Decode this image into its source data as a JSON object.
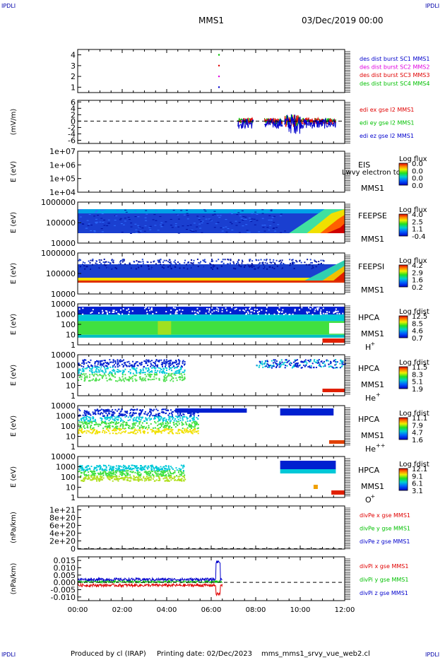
{
  "header": {
    "corner_tl": "IPDLI",
    "corner_tr": "IPDLI",
    "corner_bl": "IPDLI",
    "corner_br": "IPDLI",
    "mission": "MMS1",
    "datetime": "03/Dec/2019 00:00"
  },
  "footer": {
    "produced_by": "Produced by cl (IRAP)",
    "printing_date": "Printing date: 02/Dec/2023",
    "script_name": "mms_mms1_srvy_vue_web2.cl"
  },
  "colors": {
    "red": "#e00000",
    "magenta": "#e000e0",
    "green": "#00c000",
    "blue": "#0000cc"
  },
  "chart_data": [
    {
      "type": "scatter",
      "ylim": [
        0.5,
        4.5
      ],
      "ytick_labels": [
        "1",
        "2",
        "3",
        "4"
      ],
      "yticks": [
        1,
        2,
        3,
        4
      ],
      "legend": [
        {
          "text": "des dist burst SC1 MMS1",
          "color": "#0000cc"
        },
        {
          "text": "des dist burst SC2 MMS2",
          "color": "#e000e0"
        },
        {
          "text": "des dist burst SC3 MMS3",
          "color": "#e00000"
        },
        {
          "text": "des dist burst SC4 MMS4",
          "color": "#00c000"
        }
      ],
      "points": [
        {
          "x": 6.35,
          "y": 4,
          "c": "#00c000"
        },
        {
          "x": 6.35,
          "y": 3,
          "c": "#e00000"
        },
        {
          "x": 6.35,
          "y": 2,
          "c": "#e000e0"
        },
        {
          "x": 6.35,
          "y": 1,
          "c": "#0000cc"
        }
      ]
    },
    {
      "type": "line",
      "ylabel": "(mV/m)",
      "ylim": [
        -7,
        6.5
      ],
      "yticks": [
        6,
        4,
        2,
        0,
        -2,
        -4,
        -6
      ],
      "ytick_labels": [
        "6",
        "4",
        "2",
        "0",
        "-2",
        "-4",
        "-6"
      ],
      "zero_line": true,
      "legend": [
        {
          "text": "edi ex gse l2 MMS1",
          "color": "#e00000"
        },
        {
          "text": "edi ey gse l2 MMS1",
          "color": "#00c000"
        },
        {
          "text": "edi ez gse l2 MMS1",
          "color": "#0000cc"
        }
      ]
    },
    {
      "type": "heatmap",
      "ylabel": "E (eV)",
      "ytick_labels": [
        "1e+07",
        "1e+06",
        "1e+05",
        "1e+04"
      ],
      "instrument": "EIS",
      "overlay": "Lwvy electron to",
      "spacecraft": "MMS1",
      "cbar_title": "Log flux",
      "cbar_values": [
        "0.0",
        "0.0",
        "0.0",
        "0.0"
      ],
      "fill": "none"
    },
    {
      "type": "heatmap",
      "ylabel": "E (eV)",
      "ytick_labels": [
        "1000000",
        "100000",
        "10000"
      ],
      "instrument": "FEEPSE",
      "spacecraft": "MMS1",
      "cbar_title": "Log flux",
      "cbar_values": [
        "4.0",
        "2.5",
        "1.1",
        "-0.4"
      ],
      "fill": "feepse"
    },
    {
      "type": "heatmap",
      "ylabel": "E (eV)",
      "ytick_labels": [
        "1000000",
        "100000",
        "10000"
      ],
      "instrument": "FEEPSI",
      "spacecraft": "MMS1",
      "cbar_title": "Log flux",
      "cbar_values": [
        "4.2",
        "2.9",
        "1.6",
        "0.2"
      ],
      "fill": "feepsi"
    },
    {
      "type": "heatmap",
      "ylabel": "E (eV)",
      "ytick_labels": [
        "10000",
        "1000",
        "100",
        "10",
        "1"
      ],
      "instrument": "HPCA",
      "spacecraft": "MMS1",
      "species": "H",
      "species_sup": "+",
      "cbar_title": "Log fdist",
      "cbar_values": [
        "12.5",
        "8.5",
        "4.6",
        "0.7"
      ],
      "fill": "hplus"
    },
    {
      "type": "heatmap",
      "ylabel": "E (eV)",
      "ytick_labels": [
        "10000",
        "1000",
        "100",
        "10",
        "1"
      ],
      "instrument": "HPCA",
      "spacecraft": "MMS1",
      "species": "He",
      "species_sup": "+",
      "cbar_title": "Log fdist",
      "cbar_values": [
        "11.5",
        "8.3",
        "5.1",
        "1.9"
      ],
      "fill": "heplus"
    },
    {
      "type": "heatmap",
      "ylabel": "E (eV)",
      "ytick_labels": [
        "10000",
        "1000",
        "100",
        "10",
        "1"
      ],
      "instrument": "HPCA",
      "spacecraft": "MMS1",
      "species": "He",
      "species_sup": "++",
      "cbar_title": "Log fdist",
      "cbar_values": [
        "11.1",
        "7.9",
        "4.7",
        "1.6"
      ],
      "fill": "heplusplus"
    },
    {
      "type": "heatmap",
      "ylabel": "E (eV)",
      "ytick_labels": [
        "10000",
        "1000",
        "100",
        "10",
        "1"
      ],
      "instrument": "HPCA",
      "spacecraft": "MMS1",
      "species": "O",
      "species_sup": "+",
      "cbar_title": "Log fdist",
      "cbar_values": [
        "12.1",
        "9.1",
        "6.1",
        "3.1"
      ],
      "fill": "oplus"
    },
    {
      "type": "line",
      "ylabel": "(nPa/km)",
      "ylim": [
        -1e+19,
        1.1e+21
      ],
      "yticks": [
        1e+21,
        8e+20,
        6e+20,
        4e+20,
        2e+20,
        0
      ],
      "ytick_labels": [
        "1e+21",
        "8e+20",
        "6e+20",
        "4e+20",
        "2e+20",
        "0"
      ],
      "zero_line": true,
      "legend": [
        {
          "text": "divPe x gse MMS1",
          "color": "#e00000"
        },
        {
          "text": "divPe y gse MMS1",
          "color": "#00c000"
        },
        {
          "text": "divPe z gse MMS1",
          "color": "#0000cc"
        }
      ]
    },
    {
      "type": "line",
      "ylabel": "(nPa/km)",
      "ylim": [
        -0.0125,
        0.0175
      ],
      "yticks": [
        0.015,
        0.01,
        0.005,
        0,
        -0.005,
        -0.01
      ],
      "ytick_labels": [
        "0.015",
        "0.010",
        "0.005",
        "0.000",
        "-0.005",
        "-0.010"
      ],
      "zero_line": true,
      "legend": [
        {
          "text": "divPi x gse MMS1",
          "color": "#e00000"
        },
        {
          "text": "divPi y gse MMS1",
          "color": "#00c000"
        },
        {
          "text": "divPi z gse MMS1",
          "color": "#0000cc"
        }
      ]
    }
  ],
  "time_axis": {
    "labels": [
      "00:00",
      "02:00",
      "04:00",
      "06:00",
      "08:00",
      "10:00",
      "12:00"
    ],
    "range_hours": [
      0,
      12
    ]
  }
}
